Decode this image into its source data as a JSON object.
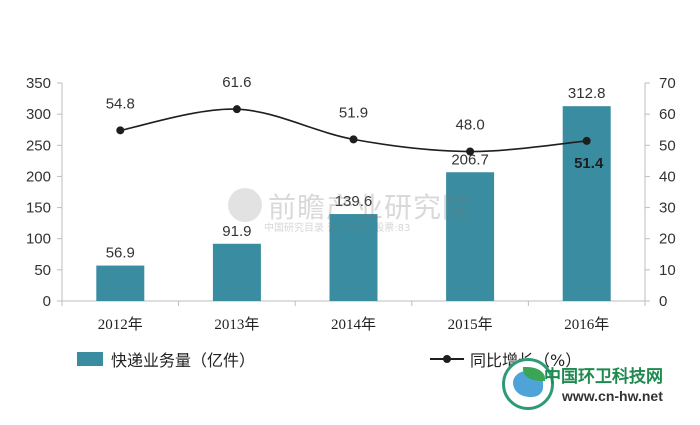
{
  "chart_data": {
    "type": "bar",
    "categories": [
      "2012年",
      "2013年",
      "2014年",
      "2015年",
      "2016年"
    ],
    "series": [
      {
        "name": "快递业务量（亿件）",
        "chart": "bar",
        "axis": "left",
        "values": [
          56.9,
          91.9,
          139.6,
          206.7,
          312.8
        ]
      },
      {
        "name": "同比增长（%）",
        "chart": "line",
        "axis": "right",
        "values": [
          54.8,
          61.6,
          51.9,
          48.0,
          51.4
        ]
      }
    ],
    "data_labels_bar": [
      "56.9",
      "91.9",
      "139.6",
      "206.7",
      "312.8"
    ],
    "data_labels_line": [
      "54.8",
      "61.6",
      "51.9",
      "48.0",
      "51.4"
    ],
    "ylim_left": [
      0,
      350
    ],
    "yticks_left": [
      0,
      50,
      100,
      150,
      200,
      250,
      300,
      350
    ],
    "ylim_right": [
      0,
      70
    ],
    "yticks_right": [
      0,
      10,
      20,
      30,
      40,
      50,
      60,
      70
    ],
    "grid": false,
    "legend_position": "bottom",
    "colors": {
      "bar": "#3a8ca0",
      "line": "#1e1e1e",
      "axis": "#bdbdbd"
    }
  },
  "watermark": {
    "title": "前瞻产业研究院",
    "subtitle": "中国研究目录 咨询专家 (股票:83"
  },
  "branding": {
    "name": "中国环卫科技网",
    "url": "www.cn-hw.net"
  }
}
